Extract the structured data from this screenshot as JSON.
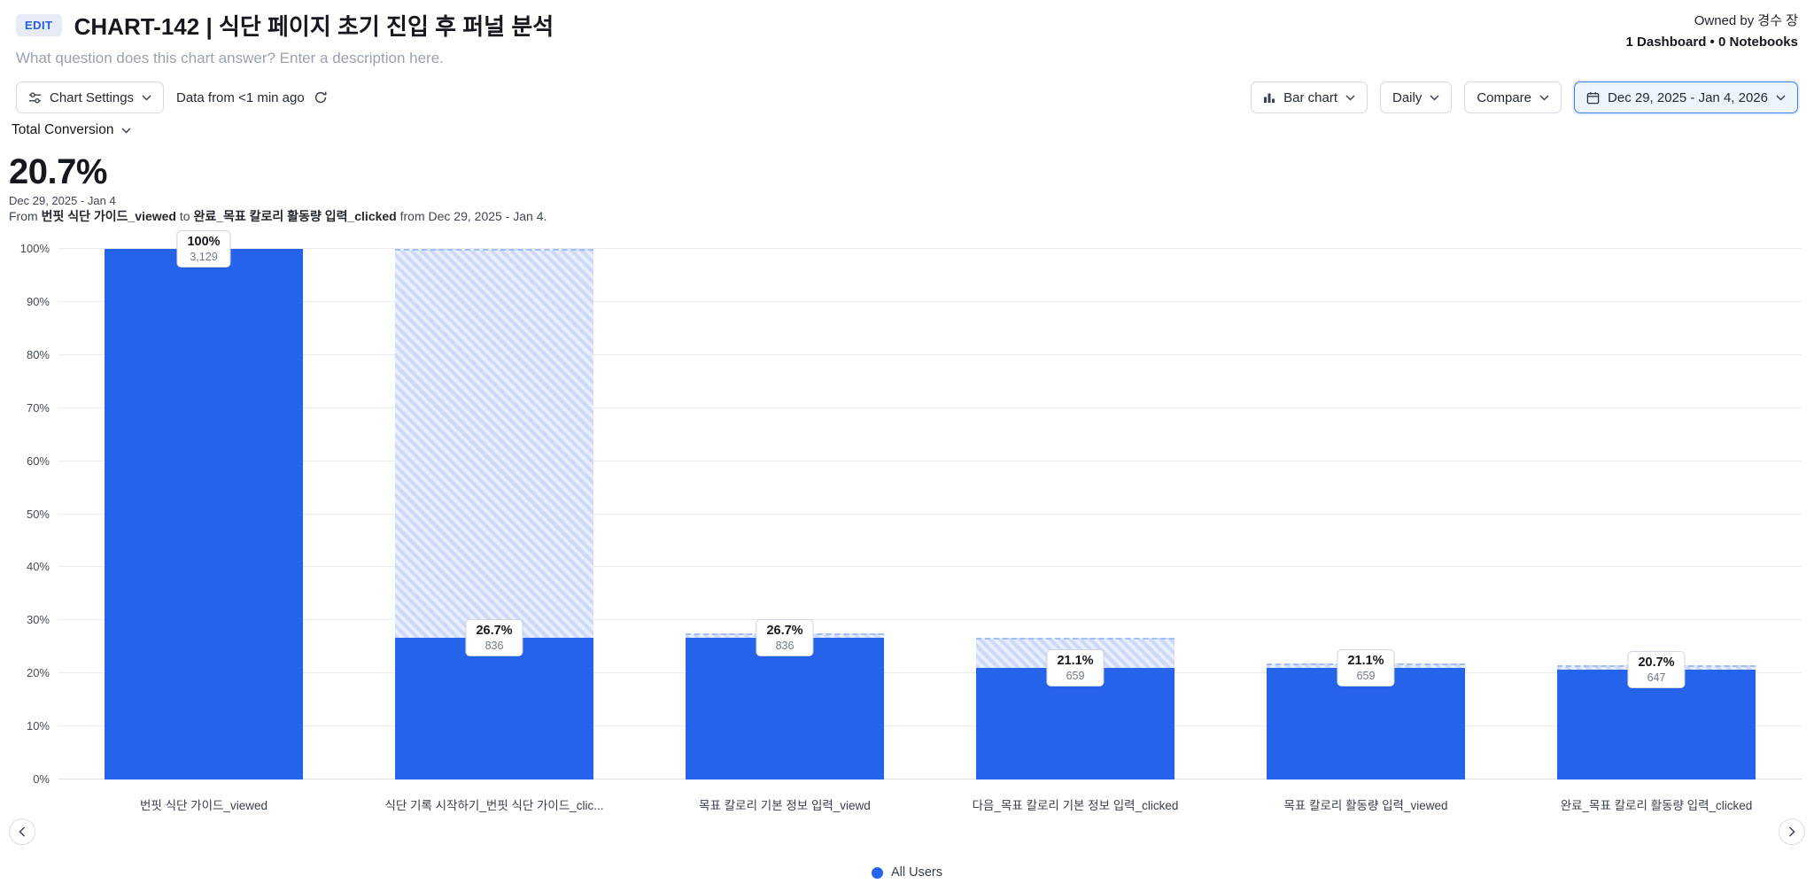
{
  "header": {
    "edit_badge": "EDIT",
    "title": "CHART-142 | 식단 페이지 초기 진입 후 퍼널 분석",
    "description_placeholder": "What question does this chart answer? Enter a description here.",
    "owned_by": "Owned by 경수 장",
    "usage": "1 Dashboard • 0 Notebooks"
  },
  "toolbar": {
    "chart_settings_label": "Chart Settings",
    "data_freshness": "Data from <1 min ago",
    "chart_type_label": "Bar chart",
    "granularity_label": "Daily",
    "compare_label": "Compare",
    "date_range_label": "Dec 29, 2025 - Jan 4, 2026"
  },
  "measure": {
    "label": "Total Conversion"
  },
  "metric": {
    "value": "20.7%",
    "date_range": "Dec 29, 2025 - Jan 4",
    "summary_prefix": "From",
    "summary_from": "번핏 식단 가이드_viewed",
    "summary_mid": "to",
    "summary_to": "완료_목표 칼로리 활동량 입력_clicked",
    "summary_suffix": "from Dec 29, 2025 - Jan 4."
  },
  "legend": {
    "label": "All Users",
    "color": "#2563eb"
  },
  "icons": {
    "chart_settings": "sliders-icon",
    "refresh": "refresh-icon",
    "chart_type": "bar-chart-icon",
    "date_range": "calendar-icon",
    "dropdown": "chevron-down-icon",
    "pager_left": "chevron-left-icon",
    "pager_right": "chevron-right-icon",
    "legend_marker": "dot-icon"
  },
  "colors": {
    "accent": "#2563eb",
    "bar": "#2563eb",
    "hatch_dark": "#ccd9f8",
    "hatch_light": "#e9eefc",
    "date_button_border": "#3d7ef0"
  },
  "chart_data": {
    "type": "bar",
    "subtype": "funnel-conversion",
    "title": "",
    "xlabel": "",
    "ylabel": "",
    "grid": true,
    "legend_position": "bottom",
    "ylim": [
      0,
      100
    ],
    "y_tick_labels": [
      "0%",
      "10%",
      "20%",
      "30%",
      "40%",
      "50%",
      "60%",
      "70%",
      "80%",
      "90%",
      "100%"
    ],
    "categories": [
      "번핏 식단 가이드_viewed",
      "식단 기록 시작하기_번핏 식단 가이드_clic...",
      "목표 칼로리 기본 정보 입력_viewd",
      "다음_목표 칼로리 기본 정보 입력_clicked",
      "목표 칼로리 활동량 입력_viewed",
      "완료_목표 칼로리 활동량 입력_clicked"
    ],
    "series": [
      {
        "name": "All Users",
        "conversion_pct": [
          100,
          26.7,
          26.7,
          21.1,
          21.1,
          20.7
        ],
        "counts": [
          3129,
          836,
          836,
          659,
          659,
          647
        ],
        "pct_labels": [
          "100%",
          "26.7%",
          "26.7%",
          "21.1%",
          "21.1%",
          "20.7%"
        ],
        "count_labels": [
          "3,129",
          "836",
          "836",
          "659",
          "659",
          "647"
        ]
      }
    ],
    "bar_color": "#2563eb",
    "dropoff_hatch_colors": [
      "#ccd9f8",
      "#e9eefc"
    ]
  }
}
